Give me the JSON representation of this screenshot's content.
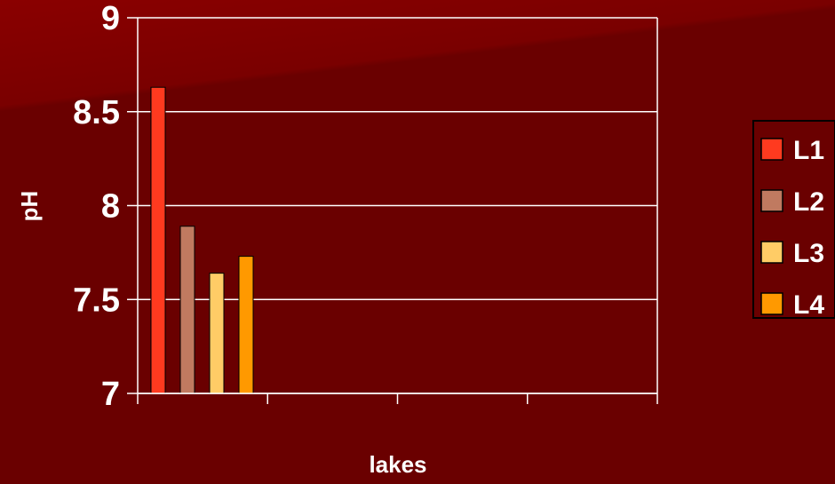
{
  "chart_data": {
    "type": "bar",
    "categories": [
      ""
    ],
    "series": [
      {
        "name": "L1",
        "values": [
          8.63
        ],
        "color": "#ff3a1f"
      },
      {
        "name": "L2",
        "values": [
          7.89
        ],
        "color": "#c07a60"
      },
      {
        "name": "L3",
        "values": [
          7.64
        ],
        "color": "#ffcc66"
      },
      {
        "name": "L4",
        "values": [
          7.73
        ],
        "color": "#ff9900"
      }
    ],
    "xlabel": "lakes",
    "ylabel": "pH",
    "ylim": [
      7,
      9
    ],
    "yticks": [
      "7",
      "7.5",
      "8",
      "8.5",
      "9"
    ],
    "grid": true,
    "legend": "right",
    "colors": {
      "background": "#6b0000",
      "axis": "#ffffff",
      "grid": "#ffffff"
    }
  }
}
